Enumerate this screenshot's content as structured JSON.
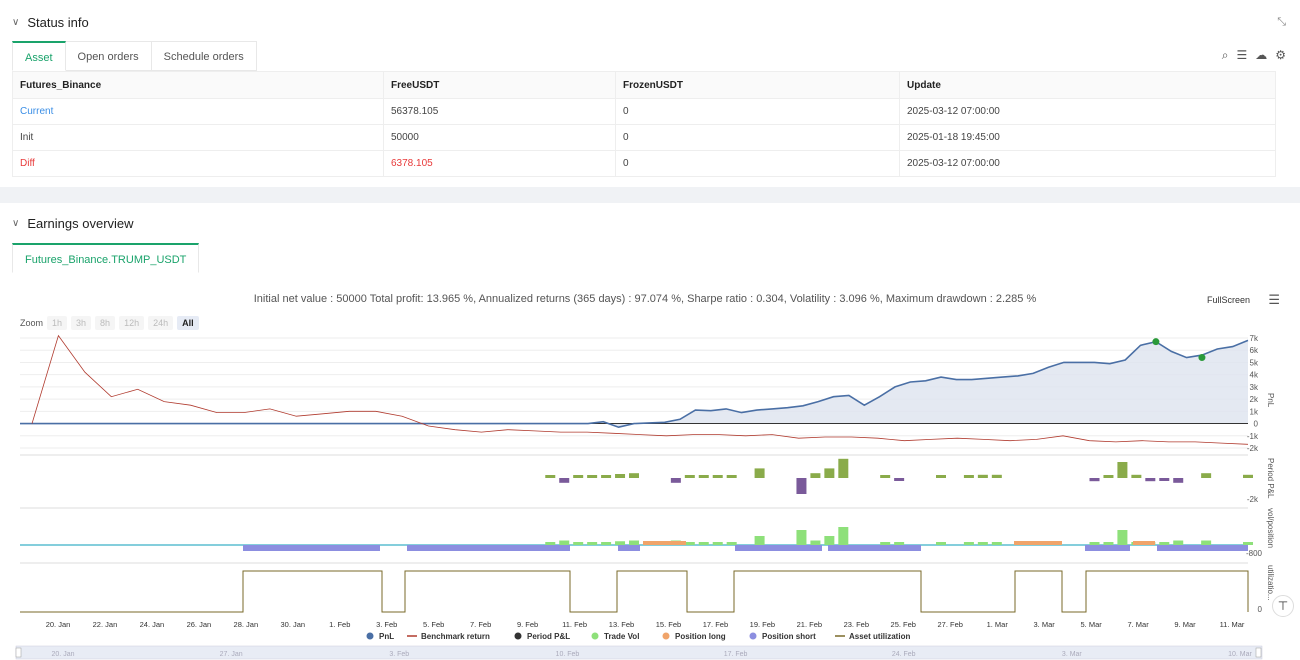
{
  "status": {
    "title": "Status info",
    "tabs": [
      "Asset",
      "Open orders",
      "Schedule orders"
    ],
    "table": {
      "headers": [
        "Futures_Binance",
        "FreeUSDT",
        "FrozenUSDT",
        "Update"
      ],
      "rows": [
        {
          "label": "Current",
          "free": "56378.105",
          "frozen": "0",
          "update": "2025-03-12 07:00:00"
        },
        {
          "label": "Init",
          "free": "50000",
          "frozen": "0",
          "update": "2025-01-18 19:45:00"
        },
        {
          "label": "Diff",
          "free": "6378.105",
          "frozen": "0",
          "update": "2025-03-12 07:00:00"
        }
      ]
    }
  },
  "earnings": {
    "title": "Earnings overview",
    "tab": "Futures_Binance.TRUMP_USDT",
    "summary": "Initial net value : 50000 Total profit: 13.965 %, Annualized returns (365 days) : 97.074 %, Sharpe ratio : 0.304, Volatility : 3.096 %, Maximum drawdown : 2.285 %",
    "fullscreen": "FullScreen",
    "zoom_label": "Zoom",
    "zoom_buttons": [
      "1h",
      "3h",
      "8h",
      "12h",
      "24h",
      "All"
    ]
  },
  "chart_data": {
    "type": "line",
    "x_labels": [
      "20. Jan",
      "22. Jan",
      "24. Jan",
      "26. Jan",
      "28. Jan",
      "30. Jan",
      "1. Feb",
      "3. Feb",
      "5. Feb",
      "7. Feb",
      "9. Feb",
      "11. Feb",
      "13. Feb",
      "15. Feb",
      "17. Feb",
      "19. Feb",
      "21. Feb",
      "23. Feb",
      "25. Feb",
      "27. Feb",
      "1. Mar",
      "3. Mar",
      "5. Mar",
      "7. Mar",
      "9. Mar",
      "11. Mar"
    ],
    "navigator_labels": [
      "20. Jan",
      "27. Jan",
      "3. Feb",
      "10. Feb",
      "17. Feb",
      "24. Feb",
      "3. Mar",
      "10. Mar"
    ],
    "pnl_ticks": [
      "7k",
      "6k",
      "5k",
      "4k",
      "3k",
      "2k",
      "1k",
      "0",
      "-1k",
      "-2k"
    ],
    "pnl_axis_label": "PnL",
    "period_axis_label": "Period P&L",
    "period_tick": "-2k",
    "vol_axis_label": "vol/position",
    "vol_tick": "-800",
    "util_axis_label": "utilizatio...",
    "util_tick": "0",
    "legend": [
      "PnL",
      "Benchmark return",
      "Period P&L",
      "Trade Vol",
      "Position long",
      "Position short",
      "Asset utilization"
    ],
    "colors": {
      "pnl": "#4a6fa5",
      "benchmark": "#b03a2e",
      "period_pos": "#8aab4a",
      "period_neg": "#7a5a9a",
      "trade_vol": "#8ee07a",
      "pos_long": "#f0a46a",
      "pos_short": "#8c8ee0",
      "util": "#7a6a2a"
    },
    "pnl": [
      0,
      0,
      0,
      0,
      0,
      0,
      0,
      0,
      0,
      0,
      0,
      0,
      0,
      0,
      0,
      0,
      0,
      0,
      0,
      0,
      0,
      0,
      0,
      0,
      0,
      0,
      0,
      0,
      0,
      0,
      0,
      0,
      0,
      0,
      0,
      0,
      0,
      0,
      150,
      -300,
      0,
      50,
      100,
      350,
      1100,
      1050,
      1200,
      900,
      1100,
      1200,
      1300,
      1450,
      1800,
      2200,
      2300,
      1500,
      2200,
      3000,
      3400,
      3500,
      3800,
      3600,
      3600,
      3700,
      3800,
      3900,
      4100,
      4600,
      5000,
      5000,
      5000,
      4900,
      5200,
      6400,
      6700,
      5900,
      5400,
      5600,
      6100,
      6300,
      6800
    ],
    "benchmark": [
      0,
      7200,
      4200,
      2200,
      2800,
      1800,
      1500,
      900,
      900,
      1200,
      600,
      800,
      1000,
      1000,
      600,
      -200,
      -500,
      -700,
      -500,
      -600,
      -700,
      -700,
      -800,
      -900,
      -1000,
      -900,
      -900,
      -1000,
      -900,
      -1200,
      -1100,
      -1100,
      -1200,
      -1400,
      -1300,
      -1200,
      -1300,
      -1400,
      -1300,
      -1000,
      -1400,
      -1500,
      -1400,
      -1500,
      -1500,
      -1600,
      -1700
    ],
    "period_pnl": [
      0,
      0,
      0,
      0,
      0,
      0,
      0,
      0,
      0,
      0,
      0,
      0,
      0,
      0,
      0,
      0,
      0,
      0,
      0,
      0,
      0,
      0,
      0,
      0,
      0,
      0,
      0,
      0,
      0,
      0,
      0,
      0,
      0,
      0,
      0,
      0,
      0,
      0,
      150,
      -300,
      150,
      50,
      100,
      250,
      300,
      0,
      0,
      -300,
      100,
      100,
      100,
      100,
      0,
      600,
      0,
      0,
      -1000,
      300,
      600,
      1200,
      0,
      0,
      100,
      -100,
      0,
      0,
      100,
      0,
      100,
      200,
      200,
      0,
      0,
      0,
      0,
      0,
      0,
      -200,
      100,
      1000,
      200,
      -200,
      -150,
      -300,
      0,
      300,
      0,
      0,
      200
    ]
  }
}
